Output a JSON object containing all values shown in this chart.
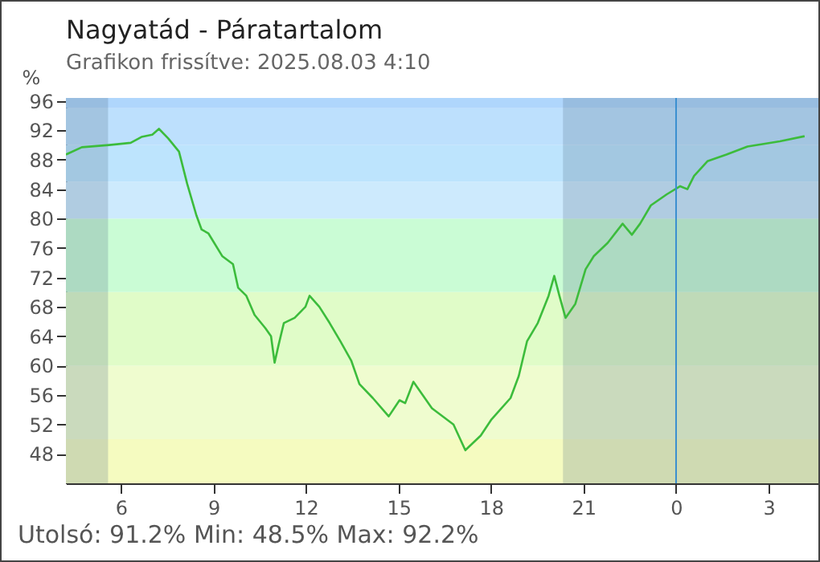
{
  "chart_data": {
    "type": "line",
    "title": "Nagyatád - Páratartalom",
    "subtitle": "Grafikon frissítve: 2025.08.03 4:10",
    "ylabel": "%",
    "annotations": [
      "Utolsó: 91.2%  Min: 48.5%  Max: 92.2%"
    ],
    "x": [
      "2025-08-02T04:13",
      "2025-08-02T04:44",
      "2025-08-02T05:37",
      "2025-08-02T06:19",
      "2025-08-02T06:40",
      "2025-08-02T07:01",
      "2025-08-02T07:14",
      "2025-08-02T07:32",
      "2025-08-02T07:53",
      "2025-08-02T08:09",
      "2025-08-02T08:27",
      "2025-08-02T08:37",
      "2025-08-02T08:50",
      "2025-08-02T09:17",
      "2025-08-02T09:38",
      "2025-08-02T09:48",
      "2025-08-02T10:04",
      "2025-08-02T10:20",
      "2025-08-02T10:41",
      "2025-08-02T10:52",
      "2025-08-02T10:59",
      "2025-08-02T11:07",
      "2025-08-02T11:17",
      "2025-08-02T11:38",
      "2025-08-02T11:59",
      "2025-08-02T12:07",
      "2025-08-02T12:26",
      "2025-08-02T12:46",
      "2025-08-02T13:07",
      "2025-08-02T13:28",
      "2025-08-02T13:44",
      "2025-08-02T14:10",
      "2025-08-02T14:41",
      "2025-08-02T15:02",
      "2025-08-02T15:13",
      "2025-08-02T15:29",
      "2025-08-02T16:05",
      "2025-08-02T16:47",
      "2025-08-02T17:10",
      "2025-08-02T17:40",
      "2025-08-02T18:01",
      "2025-08-02T18:38",
      "2025-08-02T18:54",
      "2025-08-02T19:10",
      "2025-08-02T19:31",
      "2025-08-02T19:52",
      "2025-08-02T20:03",
      "2025-08-02T20:13",
      "2025-08-02T20:25",
      "2025-08-02T20:44",
      "2025-08-02T21:04",
      "2025-08-02T21:20",
      "2025-08-02T21:47",
      "2025-08-02T22:16",
      "2025-08-02T22:34",
      "2025-08-02T22:50",
      "2025-08-02T23:11",
      "2025-08-02T23:42",
      "2025-08-03T00:08",
      "2025-08-03T00:22",
      "2025-08-03T00:35",
      "2025-08-03T01:01",
      "2025-08-03T01:38",
      "2025-08-03T02:19",
      "2025-08-03T03:22",
      "2025-08-03T04:10"
    ],
    "series": [
      {
        "color": "#3cbc3c",
        "values": [
          88.7,
          89.7,
          90.0,
          90.3,
          91.1,
          91.4,
          92.2,
          90.9,
          89.1,
          84.7,
          80.4,
          78.5,
          78.0,
          74.9,
          73.8,
          70.6,
          69.5,
          66.9,
          65.1,
          64.0,
          60.4,
          62.9,
          65.8,
          66.5,
          68.0,
          69.5,
          68.0,
          65.8,
          63.3,
          60.7,
          57.5,
          55.6,
          53.1,
          55.3,
          54.9,
          57.8,
          54.2,
          52.0,
          48.5,
          50.5,
          52.7,
          55.6,
          58.6,
          63.3,
          65.8,
          69.5,
          72.2,
          69.5,
          66.5,
          68.4,
          73.1,
          74.9,
          76.7,
          79.3,
          77.8,
          79.3,
          81.8,
          83.3,
          84.4,
          84.0,
          85.8,
          87.8,
          88.7,
          89.8,
          90.5,
          91.2
        ]
      }
    ],
    "xlim": [
      "2025-08-02T04:13",
      "2025-08-03T04:40"
    ],
    "ylim": [
      44,
      96.4
    ],
    "xticks": [
      {
        "value": "2025-08-02T06:00",
        "label": "6"
      },
      {
        "value": "2025-08-02T09:00",
        "label": "9"
      },
      {
        "value": "2025-08-02T12:00",
        "label": "12"
      },
      {
        "value": "2025-08-02T15:00",
        "label": "15"
      },
      {
        "value": "2025-08-02T18:00",
        "label": "18"
      },
      {
        "value": "2025-08-02T21:00",
        "label": "21"
      },
      {
        "value": "2025-08-03T00:00",
        "label": "0"
      },
      {
        "value": "2025-08-03T03:00",
        "label": "3"
      }
    ],
    "yticks": [
      48,
      52,
      56,
      60,
      64,
      68,
      72,
      76,
      80,
      84,
      88,
      92,
      96
    ],
    "bands": [
      {
        "axis": "y",
        "from": 44,
        "to": 50,
        "color": "#f5fbc0"
      },
      {
        "axis": "y",
        "from": 50,
        "to": 60,
        "color": "#effccf"
      },
      {
        "axis": "y",
        "from": 60,
        "to": 70,
        "color": "#e0fcc8"
      },
      {
        "axis": "y",
        "from": 70,
        "to": 80,
        "color": "#cafcd5"
      },
      {
        "axis": "y",
        "from": 80,
        "to": 85,
        "color": "#cdeafd"
      },
      {
        "axis": "y",
        "from": 85,
        "to": 90,
        "color": "#bde4fd"
      },
      {
        "axis": "y",
        "from": 90,
        "to": 95,
        "color": "#bde0fd"
      },
      {
        "axis": "y",
        "from": 95,
        "to": 96.4,
        "color": "#afd6fc"
      },
      {
        "axis": "x",
        "from": "2025-08-02T04:13",
        "to": "2025-08-02T05:35",
        "color": "#4a6580"
      },
      {
        "axis": "x",
        "from": "2025-08-02T20:20",
        "to": "2025-08-03T04:40",
        "color": "#4a6580"
      }
    ],
    "ref_lines": [
      {
        "axis": "x",
        "value": "2025-08-03T00:00",
        "color": "#3a8fd0"
      }
    ]
  }
}
